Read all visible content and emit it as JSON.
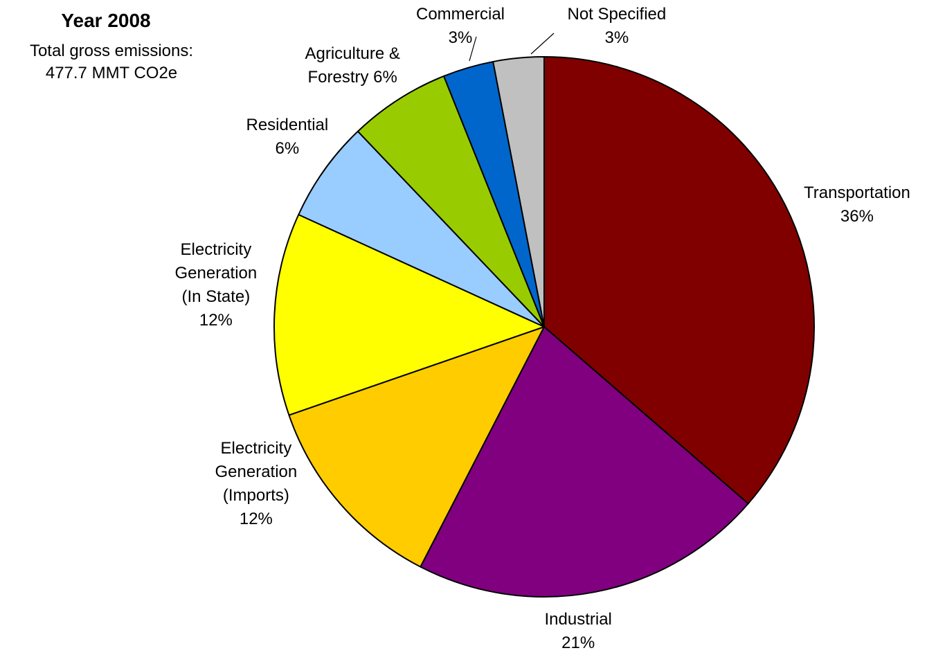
{
  "chart_data": {
    "type": "pie",
    "title": "Year 2008",
    "subtitle": "Total gross emissions:\n477.7 MMT CO2e",
    "start_angle_deg": 0,
    "direction": "clockwise",
    "slices": [
      {
        "label": "Transportation\n36%",
        "value": 36,
        "color": "#800000"
      },
      {
        "label": "Industrial\n21%",
        "value": 21,
        "color": "#800080"
      },
      {
        "label": "Electricity\nGeneration\n(Imports)\n12%",
        "value": 12,
        "color": "#ffcc00"
      },
      {
        "label": "Electricity\nGeneration\n(In State)\n12%",
        "value": 12,
        "color": "#ffff00"
      },
      {
        "label": "Residential\n6%",
        "value": 6,
        "color": "#99ccff"
      },
      {
        "label": "Agriculture &\nForestry 6%",
        "value": 6,
        "color": "#99cc00"
      },
      {
        "label": "Commercial\n3%",
        "value": 3,
        "color": "#0066cc"
      },
      {
        "label": "Not Specified\n3%",
        "value": 3,
        "color": "#c0c0c0"
      }
    ]
  }
}
